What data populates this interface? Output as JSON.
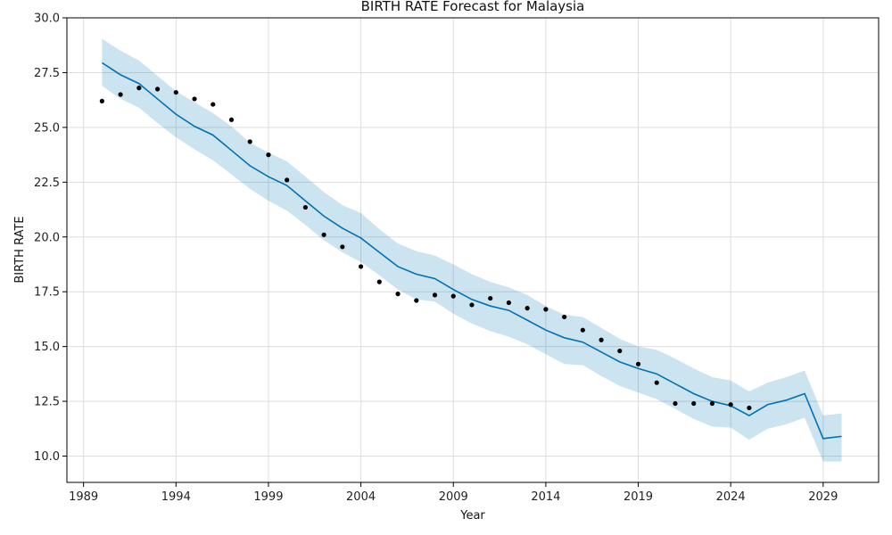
{
  "chart_data": {
    "type": "line",
    "title": "BIRTH RATE Forecast for Malaysia",
    "xlabel": "Year",
    "ylabel": "BIRTH RATE",
    "xlim": [
      1988.1,
      2032.0
    ],
    "ylim": [
      8.8,
      30.0
    ],
    "xticks": [
      1989,
      1994,
      1999,
      2004,
      2009,
      2014,
      2019,
      2024,
      2029
    ],
    "yticks": [
      10.0,
      12.5,
      15.0,
      17.5,
      20.0,
      22.5,
      25.0,
      27.5,
      30.0
    ],
    "grid": true,
    "colors": {
      "forecast_line": "#0072b2",
      "band_fill": "#0072b2",
      "points": "#000000"
    },
    "series": [
      {
        "kind": "observed",
        "x": [
          1990,
          1991,
          1992,
          1993,
          1994,
          1995,
          1996,
          1997,
          1998,
          1999,
          2000,
          2001,
          2002,
          2003,
          2004,
          2005,
          2006,
          2007,
          2008,
          2009,
          2010,
          2011,
          2012,
          2013,
          2014,
          2015,
          2016,
          2017,
          2018,
          2019,
          2020,
          2021,
          2022,
          2023,
          2024,
          2025
        ],
        "y": [
          26.2,
          26.5,
          26.8,
          26.75,
          26.6,
          26.3,
          26.05,
          25.35,
          24.35,
          23.75,
          22.6,
          21.35,
          20.1,
          19.55,
          18.65,
          17.95,
          17.4,
          17.1,
          17.35,
          17.3,
          16.9,
          17.2,
          17.0,
          16.75,
          16.7,
          16.35,
          15.75,
          15.3,
          14.8,
          14.2,
          13.35,
          12.4,
          12.4,
          12.4,
          12.35,
          12.2
        ]
      },
      {
        "kind": "forecast",
        "x": [
          1990,
          1991,
          1992,
          1993,
          1994,
          1995,
          1996,
          1997,
          1998,
          1999,
          2000,
          2001,
          2002,
          2003,
          2004,
          2005,
          2006,
          2007,
          2008,
          2009,
          2010,
          2011,
          2012,
          2013,
          2014,
          2015,
          2016,
          2017,
          2018,
          2019,
          2020,
          2021,
          2022,
          2023,
          2024,
          2025,
          2026,
          2027,
          2028,
          2029,
          2030
        ],
        "y": [
          27.95,
          27.4,
          27.0,
          26.3,
          25.6,
          25.05,
          24.65,
          23.95,
          23.25,
          22.75,
          22.35,
          21.65,
          20.95,
          20.4,
          19.95,
          19.3,
          18.65,
          18.3,
          18.1,
          17.6,
          17.15,
          16.85,
          16.65,
          16.2,
          15.75,
          15.4,
          15.2,
          14.75,
          14.3,
          14.0,
          13.75,
          13.3,
          12.85,
          12.5,
          12.3,
          11.85,
          12.35,
          12.55,
          12.85,
          10.8,
          10.9
        ]
      },
      {
        "kind": "interval",
        "x": [
          1990,
          1991,
          1992,
          1993,
          1994,
          1995,
          1996,
          1997,
          1998,
          1999,
          2000,
          2001,
          2002,
          2003,
          2004,
          2005,
          2006,
          2007,
          2008,
          2009,
          2010,
          2011,
          2012,
          2013,
          2014,
          2015,
          2016,
          2017,
          2018,
          2019,
          2020,
          2021,
          2022,
          2023,
          2024,
          2025,
          2026,
          2027,
          2028,
          2029,
          2030
        ],
        "upper": [
          29.05,
          28.5,
          28.05,
          27.35,
          26.65,
          26.15,
          25.65,
          25.05,
          24.3,
          23.85,
          23.45,
          22.75,
          22.05,
          21.45,
          21.1,
          20.35,
          19.7,
          19.35,
          19.15,
          18.75,
          18.3,
          17.95,
          17.7,
          17.35,
          16.85,
          16.45,
          16.35,
          15.85,
          15.35,
          15.0,
          14.85,
          14.45,
          14.0,
          13.6,
          13.45,
          12.95,
          13.35,
          13.6,
          13.9,
          11.85,
          11.95
        ],
        "lower": [
          26.9,
          26.3,
          25.9,
          25.2,
          24.55,
          24.0,
          23.5,
          22.85,
          22.2,
          21.65,
          21.2,
          20.55,
          19.85,
          19.3,
          18.85,
          18.25,
          17.6,
          17.15,
          17.05,
          16.5,
          16.05,
          15.7,
          15.45,
          15.1,
          14.65,
          14.2,
          14.15,
          13.65,
          13.2,
          12.9,
          12.6,
          12.15,
          11.7,
          11.35,
          11.3,
          10.75,
          11.25,
          11.45,
          11.75,
          9.75,
          9.75
        ]
      }
    ]
  }
}
